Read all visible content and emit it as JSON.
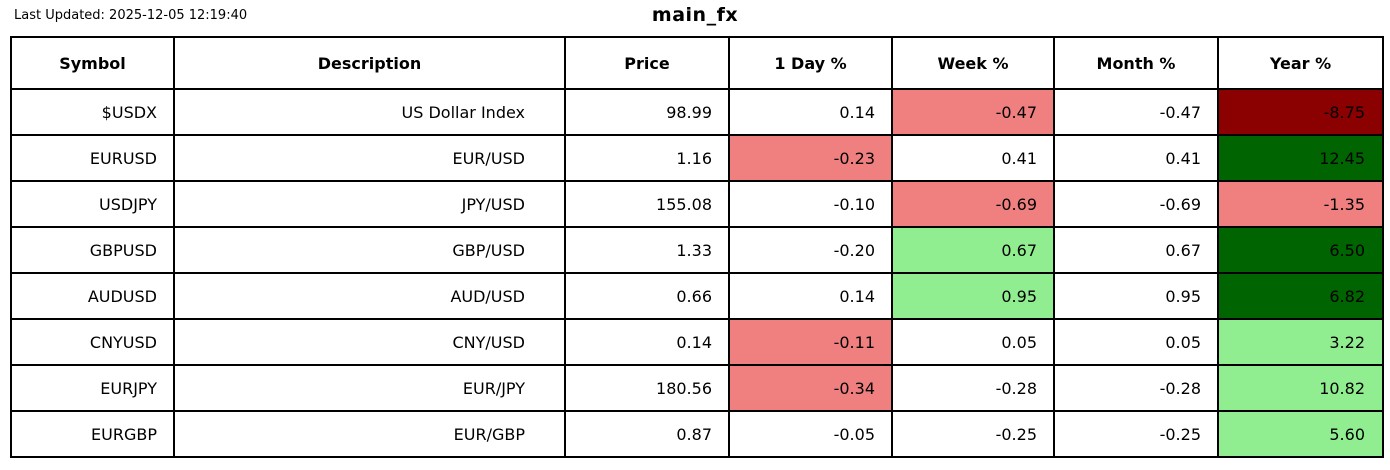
{
  "page": {
    "last_updated": "Last Updated: 2025-12-05 12:19:40",
    "title": "main_fx"
  },
  "palette": {
    "negative_mild": "#F08080",
    "negative_strong": "#8B0000",
    "positive_mild": "#90EE90",
    "positive_strong": "#006400",
    "border": "#000000",
    "background": "#FFFFFF",
    "text": "#000000"
  },
  "chart_data": {
    "type": "table",
    "title": "main_fx",
    "columns": [
      "Symbol",
      "Description",
      "Price",
      "1 Day %",
      "Week %",
      "Month %",
      "Year %"
    ],
    "rows": [
      {
        "symbol": "$USDX",
        "description": "US Dollar Index",
        "price": "98.99",
        "day": "0.14",
        "week": "-0.47",
        "month": "-0.47",
        "year": "-8.75",
        "highlight": {
          "day": null,
          "week": "negative_mild",
          "month": null,
          "year": "negative_strong"
        }
      },
      {
        "symbol": "EURUSD",
        "description": "EUR/USD",
        "price": "1.16",
        "day": "-0.23",
        "week": "0.41",
        "month": "0.41",
        "year": "12.45",
        "highlight": {
          "day": "negative_mild",
          "week": null,
          "month": null,
          "year": "positive_strong"
        }
      },
      {
        "symbol": "USDJPY",
        "description": "JPY/USD",
        "price": "155.08",
        "day": "-0.10",
        "week": "-0.69",
        "month": "-0.69",
        "year": "-1.35",
        "highlight": {
          "day": null,
          "week": "negative_mild",
          "month": null,
          "year": "negative_mild"
        }
      },
      {
        "symbol": "GBPUSD",
        "description": "GBP/USD",
        "price": "1.33",
        "day": "-0.20",
        "week": "0.67",
        "month": "0.67",
        "year": "6.50",
        "highlight": {
          "day": null,
          "week": "positive_mild",
          "month": null,
          "year": "positive_strong"
        }
      },
      {
        "symbol": "AUDUSD",
        "description": "AUD/USD",
        "price": "0.66",
        "day": "0.14",
        "week": "0.95",
        "month": "0.95",
        "year": "6.82",
        "highlight": {
          "day": null,
          "week": "positive_mild",
          "month": null,
          "year": "positive_strong"
        }
      },
      {
        "symbol": "CNYUSD",
        "description": "CNY/USD",
        "price": "0.14",
        "day": "-0.11",
        "week": "0.05",
        "month": "0.05",
        "year": "3.22",
        "highlight": {
          "day": "negative_mild",
          "week": null,
          "month": null,
          "year": "positive_mild"
        }
      },
      {
        "symbol": "EURJPY",
        "description": "EUR/JPY",
        "price": "180.56",
        "day": "-0.34",
        "week": "-0.28",
        "month": "-0.28",
        "year": "10.82",
        "highlight": {
          "day": "negative_mild",
          "week": null,
          "month": null,
          "year": "positive_mild"
        }
      },
      {
        "symbol": "EURGBP",
        "description": "EUR/GBP",
        "price": "0.87",
        "day": "-0.05",
        "week": "-0.25",
        "month": "-0.25",
        "year": "5.60",
        "highlight": {
          "day": null,
          "week": null,
          "month": null,
          "year": "positive_mild"
        }
      }
    ]
  }
}
